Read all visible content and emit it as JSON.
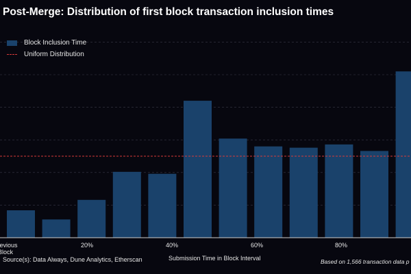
{
  "chart_data": {
    "type": "bar",
    "title": "Post-Merge: Distribution of first block transaction inclusion times",
    "xlabel": "Submission Time in Block Interval",
    "ylabel": "",
    "x_tick_labels": [
      "Previous Block",
      "20%",
      "40%",
      "60%",
      "80%"
    ],
    "series": [
      {
        "name": "Block Inclusion Time",
        "values": [
          0.042,
          0.028,
          0.058,
          0.101,
          0.098,
          0.21,
          0.152,
          0.14,
          0.138,
          0.143,
          0.133,
          0.255
        ]
      }
    ],
    "reference_lines": [
      {
        "name": "Uniform Distribution",
        "value": 0.125,
        "style": "dashed"
      }
    ],
    "ylim": [
      0,
      0.3
    ],
    "grid": true,
    "legend_position": "top-left",
    "colors": {
      "bar": "#1a426b",
      "reference": "#d93a3a",
      "grid": "#3a3a4a",
      "background": "#07070f"
    }
  },
  "footer": {
    "source": "Source(s): Data Always, Dune Analytics, Etherscan",
    "note": "Based on 1,566 transaction data p"
  }
}
